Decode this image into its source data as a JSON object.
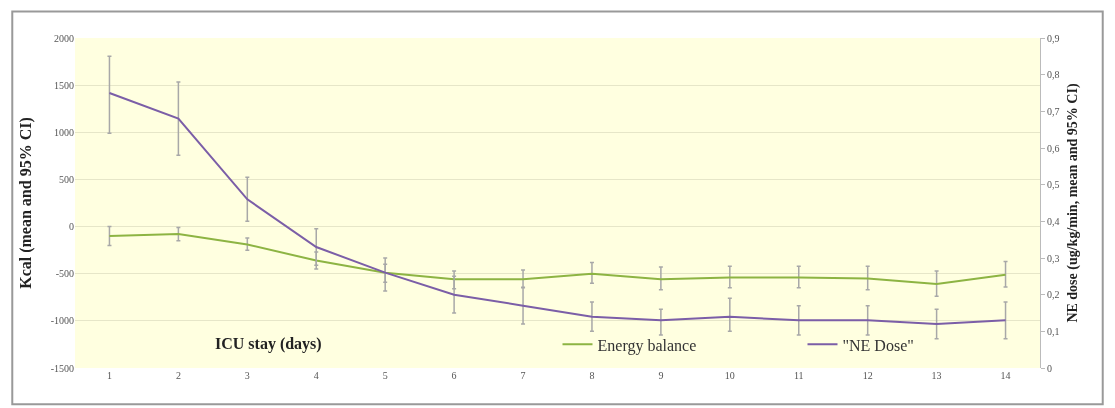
{
  "chart_data": {
    "type": "line",
    "xlabel": "ICU stay (days)",
    "ylabel": "Kcal (mean and 95% CI)",
    "y2label": "NE dose (ug/kg/min, mean and 95% CI)",
    "categories": [
      "1",
      "2",
      "3",
      "4",
      "5",
      "6",
      "7",
      "8",
      "9",
      "10",
      "11",
      "12",
      "13",
      "14"
    ],
    "series": [
      {
        "name": "Energy balance",
        "color": "#8db443",
        "values": [
          -100,
          -80,
          -190,
          -360,
          -490,
          -560,
          -560,
          -500,
          -560,
          -540,
          -540,
          -550,
          -610,
          -510
        ],
        "errors": [
          [
            -200,
            0
          ],
          [
            -150,
            -10
          ],
          [
            -250,
            -120
          ],
          [
            -450,
            -270
          ],
          [
            -590,
            -400
          ],
          [
            -660,
            -470
          ],
          [
            -650,
            -460
          ],
          [
            -600,
            -380
          ],
          [
            -670,
            -430
          ],
          [
            -650,
            -420
          ],
          [
            -650,
            -420
          ],
          [
            -670,
            -420
          ],
          [
            -740,
            -470
          ],
          [
            -640,
            -370
          ]
        ]
      },
      {
        "name": "\"NE Dose\"",
        "color": "#7b5ea7",
        "axis": "y2",
        "values": [
          0.75,
          0.68,
          0.46,
          0.33,
          0.26,
          0.2,
          0.17,
          0.14,
          0.13,
          0.14,
          0.13,
          0.13,
          0.12,
          0.13
        ],
        "errors": [
          [
            0.64,
            0.85
          ],
          [
            0.58,
            0.78
          ],
          [
            0.4,
            0.52
          ],
          [
            0.28,
            0.38
          ],
          [
            0.21,
            0.3
          ],
          [
            0.15,
            0.25
          ],
          [
            0.12,
            0.22
          ],
          [
            0.1,
            0.18
          ],
          [
            0.09,
            0.16
          ],
          [
            0.1,
            0.19
          ],
          [
            0.09,
            0.17
          ],
          [
            0.09,
            0.17
          ],
          [
            0.08,
            0.16
          ],
          [
            0.08,
            0.18
          ]
        ]
      }
    ],
    "ylim": [
      -1500,
      2000
    ],
    "yticks": [
      -1500,
      -1000,
      -500,
      0,
      500,
      1000,
      1500,
      2000
    ],
    "y2lim": [
      0,
      0.9
    ],
    "y2ticks": [
      0,
      {
        "value": 0.1,
        "label": "0,1"
      },
      {
        "value": 0.2,
        "label": "0,2"
      },
      {
        "value": 0.3,
        "label": "0,3"
      },
      {
        "value": 0.4,
        "label": "0,4"
      },
      {
        "value": 0.5,
        "label": "0,5"
      },
      {
        "value": 0.6,
        "label": "0,6"
      },
      {
        "value": 0.7,
        "label": "0,7"
      },
      {
        "value": 0.8,
        "label": "0,8"
      },
      {
        "value": 0.9,
        "label": "0,9"
      }
    ],
    "grid": "y",
    "legend": "bottom",
    "line_style": "solid"
  }
}
